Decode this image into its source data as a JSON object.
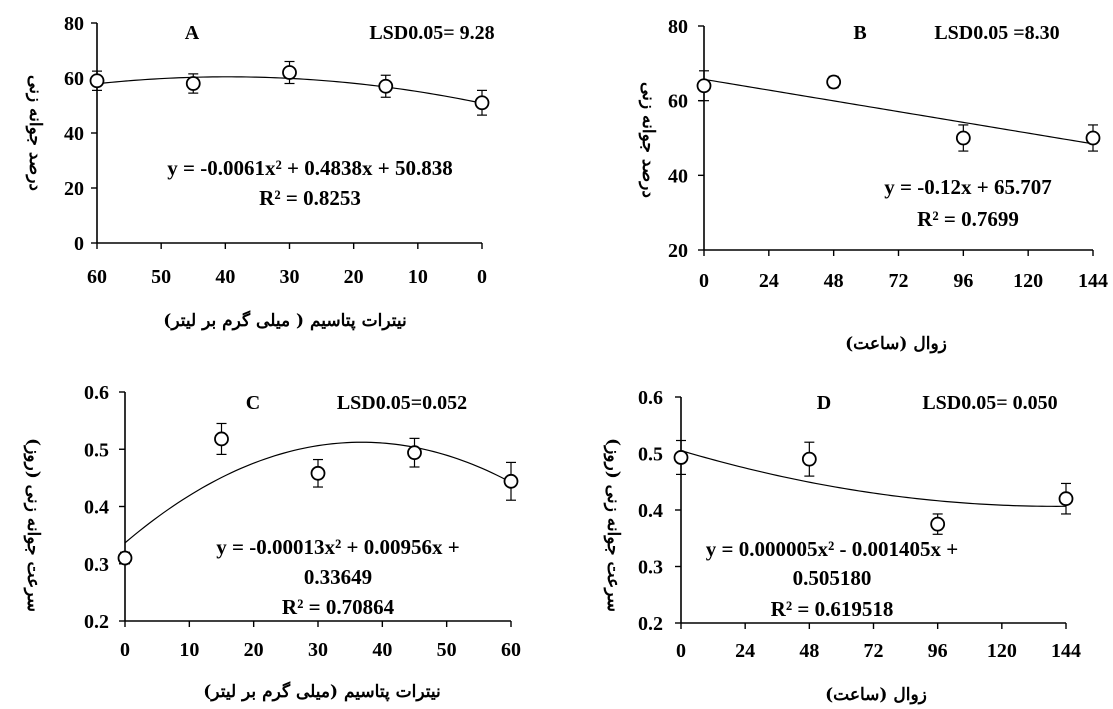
{
  "chart_data": [
    {
      "id": "A",
      "type": "scatter",
      "panel_letter": "A",
      "lsd": "LSD0.05= 9.28",
      "ylabel": "درصد جوانه زنی",
      "xlabel": "نیترات پتاسیم ( میلی گرم بر لیتر)",
      "x_reversed": true,
      "xlim": [
        60,
        0
      ],
      "ylim": [
        0,
        80
      ],
      "xticks": [
        60,
        50,
        40,
        30,
        20,
        10,
        0
      ],
      "yticks": [
        0,
        20,
        40,
        60,
        80
      ],
      "points": [
        {
          "x": 60,
          "y": 59,
          "err": 3.5
        },
        {
          "x": 45,
          "y": 58,
          "err": 3.5
        },
        {
          "x": 30,
          "y": 62,
          "err": 4
        },
        {
          "x": 15,
          "y": 57,
          "err": 4
        },
        {
          "x": 0,
          "y": 51,
          "err": 4.5
        }
      ],
      "trend": {
        "kind": "poly",
        "coef": [
          50.838,
          0.4838,
          -0.0061
        ],
        "x_from": 60,
        "x_to": 0
      },
      "equation": [
        "y = -0.0061x² + 0.4838x + 50.838",
        "R² = 0.8253"
      ]
    },
    {
      "id": "B",
      "type": "scatter",
      "panel_letter": "B",
      "lsd": "LSD0.05 =8.30",
      "ylabel": "درصد جوانه زنی",
      "xlabel": "زوال (ساعت)",
      "x_reversed": false,
      "xlim": [
        0,
        144
      ],
      "ylim": [
        20,
        80
      ],
      "xticks": [
        0,
        24,
        48,
        72,
        96,
        120,
        144
      ],
      "yticks": [
        20,
        40,
        60,
        80
      ],
      "points": [
        {
          "x": 0,
          "y": 64,
          "err": 4
        },
        {
          "x": 48,
          "y": 65,
          "err": 1.5
        },
        {
          "x": 96,
          "y": 50,
          "err": 3.5
        },
        {
          "x": 144,
          "y": 50,
          "err": 3.5
        }
      ],
      "trend": {
        "kind": "poly",
        "coef": [
          65.707,
          -0.12
        ],
        "x_from": 0,
        "x_to": 144
      },
      "equation": [
        "y = -0.12x + 65.707",
        "R² = 0.7699"
      ]
    },
    {
      "id": "C",
      "type": "scatter",
      "panel_letter": "C",
      "lsd": "LSD0.05=0.052",
      "ylabel": "سرعت جوانه زنی (روز)",
      "xlabel": "نیترات پتاسیم (میلی گرم بر لیتر)",
      "x_reversed": false,
      "xlim": [
        0,
        60
      ],
      "ylim": [
        0.2,
        0.6
      ],
      "xticks": [
        0,
        10,
        20,
        30,
        40,
        50,
        60
      ],
      "yticks": [
        0.2,
        0.3,
        0.4,
        0.5,
        0.6
      ],
      "points": [
        {
          "x": 0,
          "y": 0.31,
          "err": 0.01
        },
        {
          "x": 15,
          "y": 0.518,
          "err": 0.027
        },
        {
          "x": 30,
          "y": 0.458,
          "err": 0.024
        },
        {
          "x": 45,
          "y": 0.494,
          "err": 0.025
        },
        {
          "x": 60,
          "y": 0.444,
          "err": 0.033
        }
      ],
      "trend": {
        "kind": "poly",
        "coef": [
          0.33649,
          0.00956,
          -0.00013
        ],
        "x_from": 0,
        "x_to": 60
      },
      "equation": [
        "y = -0.00013x² + 0.00956x +",
        "0.33649",
        "R² = 0.70864"
      ]
    },
    {
      "id": "D",
      "type": "scatter",
      "panel_letter": "D",
      "lsd": "LSD0.05= 0.050",
      "ylabel": "سرعت جوانه زنی (روز)",
      "xlabel": "زوال (ساعت)",
      "x_reversed": false,
      "xlim": [
        0,
        144
      ],
      "ylim": [
        0.2,
        0.6
      ],
      "xticks": [
        0,
        24,
        48,
        72,
        96,
        120,
        144
      ],
      "yticks": [
        0.2,
        0.3,
        0.4,
        0.5,
        0.6
      ],
      "points": [
        {
          "x": 0,
          "y": 0.493,
          "err": 0.03
        },
        {
          "x": 48,
          "y": 0.49,
          "err": 0.03
        },
        {
          "x": 96,
          "y": 0.375,
          "err": 0.018
        },
        {
          "x": 144,
          "y": 0.42,
          "err": 0.027
        }
      ],
      "trend": {
        "kind": "poly",
        "coef": [
          0.50518,
          -0.001405,
          5e-06
        ],
        "x_from": 0,
        "x_to": 144
      },
      "equation": [
        "y = 0.000005x² - 0.001405x +",
        "0.505180",
        "R² = 0.619518"
      ]
    }
  ]
}
